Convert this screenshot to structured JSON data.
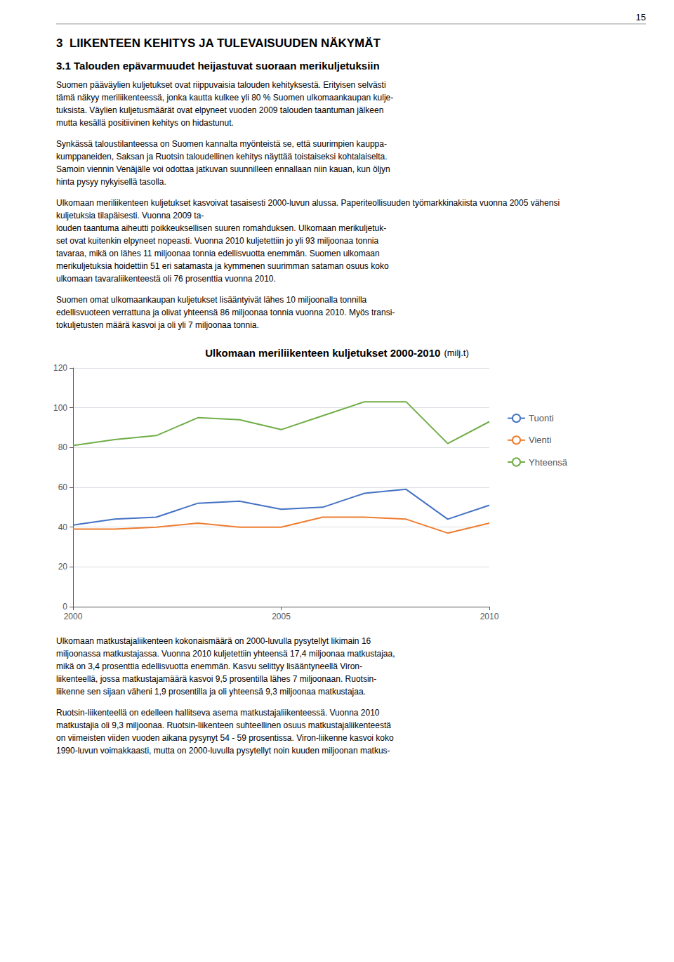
{
  "chart_data": {
    "type": "line",
    "title": "Ulkomaan meriliikenteen kuljetukset 2000-2010",
    "subtitle": "(milj.t)",
    "x": [
      2000,
      2001,
      2002,
      2003,
      2004,
      2005,
      2006,
      2007,
      2008,
      2009,
      2010
    ],
    "series": [
      {
        "name": "Tuonti",
        "color": "#4472C4",
        "values": [
          41,
          44,
          45,
          52,
          53,
          49,
          50,
          57,
          59,
          44,
          51
        ]
      },
      {
        "name": "Vienti",
        "color": "#ED7D31",
        "values": [
          39,
          39,
          40,
          42,
          40,
          40,
          45,
          45,
          44,
          37,
          42
        ]
      },
      {
        "name": "Yhteensä",
        "color": "#70AD47",
        "values": [
          81,
          84,
          86,
          95,
          94,
          89,
          96,
          103,
          103,
          82,
          93
        ]
      }
    ],
    "xlim": [
      2000,
      2010
    ],
    "xticks": [
      2000,
      2005,
      2010
    ],
    "ylim": [
      0,
      120
    ],
    "yticks": [
      0,
      20,
      40,
      60,
      80,
      100,
      120
    ],
    "grid": true,
    "legend": "right",
    "annotations": [
      "15",
      "3  LIIKENTEEN KEHITYS JA TULEVAISUUDEN NÄKYMÄT",
      "3.1 Talouden epävarmuudet heijastuvat suoraan merikuljetuksiin",
      "Suomen pääväylien kuljetukset ovat riippuvaisia talouden kehityksestä. Erityisen selvästi\ntämä näkyy meriliikenteessä, jonka kautta kulkee yli 80 % Suomen ulkomaankaupan kulje-\ntuksista. Väylien kuljetusmäärät ovat elpyneet vuoden 2009 talouden taantuman jälkeen\nmutta kesällä positiivinen kehitys on hidastunut.",
      "Synkässä taloustilanteessa on Suomen kannalta myönteistä se, että suurimpien kauppa-\nkumppaneiden, Saksan ja Ruotsin taloudellinen kehitys näyttää toistaiseksi kohtalaiselta.\nSamoin viennin Venäjälle voi odottaa jatkuvan suunnilleen ennallaan niin kauan, kun öljyn\nhinta pysyy nykyisellä tasolla.",
      "Ulkomaan meriliikenteen kuljetukset kasvoivat tasaisesti 2000-luvun alussa. Paperiteollisuuden työmarkkinakiista vuonna 2005 vähensi\nkuljetuksia tilapäisesti. Vuonna 2009 ta-\nlouden taantuma aiheutti poikkeuksellisen suuren romahduksen. Ulkomaan merikuljetuk-\nset ovat kuitenkin elpyneet nopeasti. Vuonna 2010 kuljetettiin jo yli 93 miljoonaa tonnia\ntavaraa, mikä on lähes 11 miljoonaa tonnia edellisvuotta enemmän. Suomen ulkomaan\nmerikuljetuksia hoidettiin 51 eri satamasta ja kymmenen suurimman sataman osuus koko\nulkomaan tavaraliikenteestä oli 76 prosenttia vuonna 2010.",
      "Suomen omat ulkomaankaupan kuljetukset lisääntyivät lähes 10 miljoonalla tonnilla\nedellisvuoteen verrattuna ja olivat yhteensä 86 miljoonaa tonnia vuonna 2010. Myös transi-\ntokuljetusten määrä kasvoi ja oli yli 7 miljoonaa tonnia.",
      "Ulkomaan matkustajaliikenteen kokonaismäärä on 2000-luvulla pysytellyt likimain 16\nmiljoonassa matkustajassa. Vuonna 2010 kuljetettiin yhteensä 17,4 miljoonaa matkustajaa,\nmikä on 3,4 prosenttia edellisvuotta enemmän. Kasvu selittyy lisääntyneellä Viron-\nliikenteellä, jossa matkustajamäärä kasvoi 9,5 prosentilla lähes 7 miljoonaan. Ruotsin-\nliikenne sen sijaan väheni 1,9 prosentilla ja oli yhteensä 9,3 miljoonaa matkustajaa.",
      "Ruotsin-liikenteellä on edelleen hallitseva asema matkustajaliikenteessä. Vuonna 2010\nmatkustajia oli 9,3 miljoonaa. Ruotsin-liikenteen suhteellinen osuus matkustajaliikenteestä\non viimeisten viiden vuoden aikana pysynyt 54 - 59 prosentissa. Viron-liikenne kasvoi koko\n1990-luvun voimakkaasti, mutta on 2000-luvulla pysytellyt noin kuuden miljoonan matkus-"
    ]
  }
}
